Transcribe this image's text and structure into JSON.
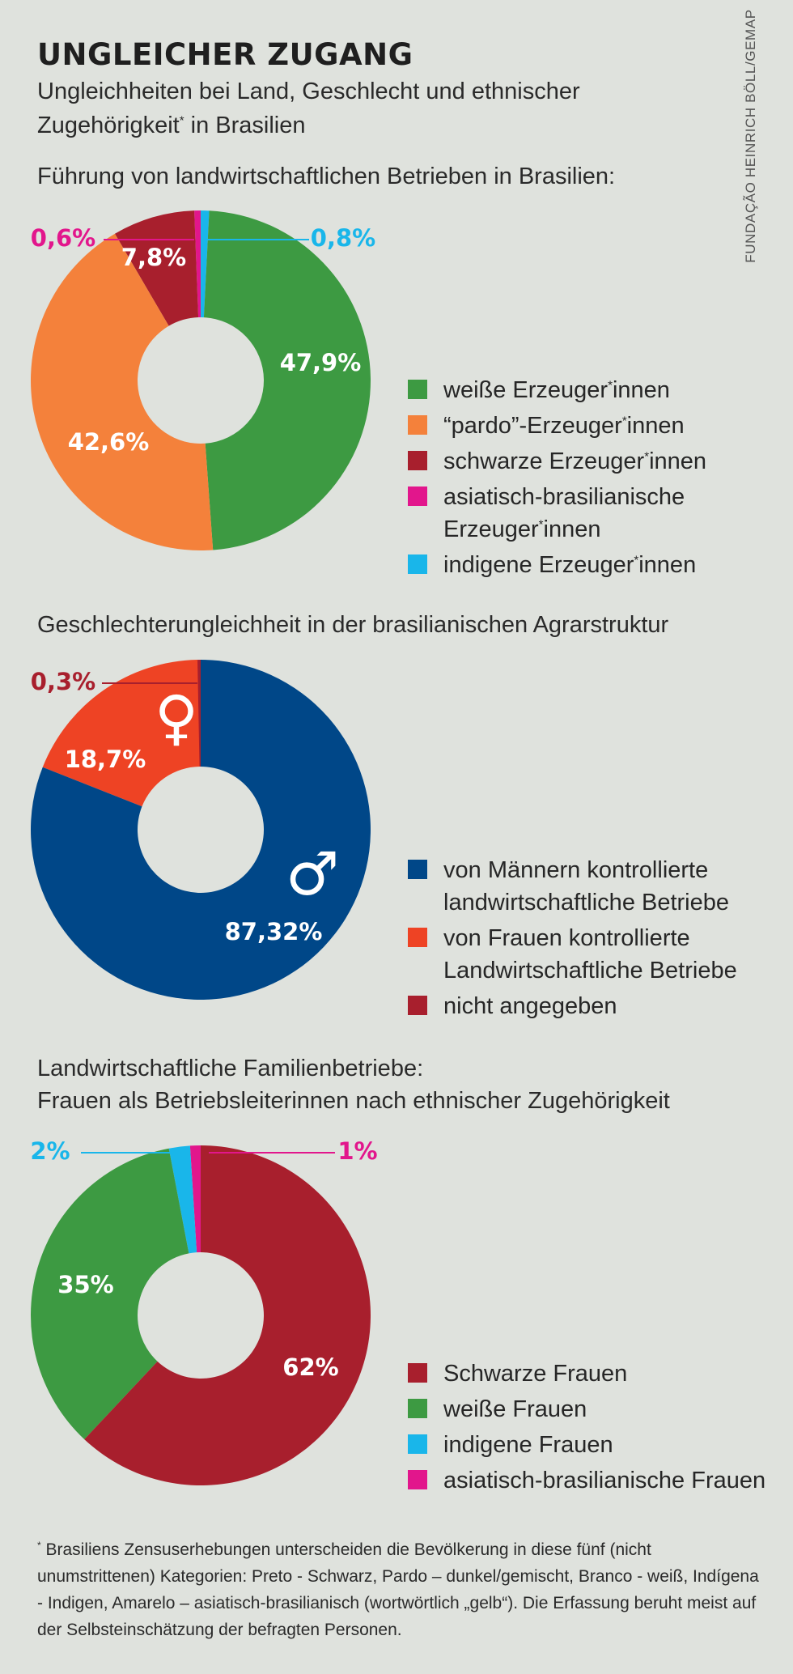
{
  "header": {
    "title": "UNGLEICHER ZUGANG",
    "subtitle_line1": "Ungleichheiten bei Land, Geschlecht und ethnischer",
    "subtitle_line2a": "Zugehörigkeit",
    "subtitle_star": "*",
    "subtitle_line2b": " in Brasilien",
    "source": "FUNDAÇÃO HEINRICH BÖLL/GEMAP"
  },
  "chart_data": [
    {
      "type": "pie",
      "title": "Führung von landwirtschaftlichen Betrieben in Brasilien:",
      "slices": [
        {
          "label": "weiße Erzeuger*innen",
          "value": 47.9,
          "display": "47,9%",
          "color": "#3d9a42"
        },
        {
          "label": "“pardo”-Erzeuger*innen",
          "value": 42.6,
          "display": "42,6%",
          "color": "#f4813b"
        },
        {
          "label": "schwarze Erzeuger*innen",
          "value": 7.8,
          "display": "7,8%",
          "color": "#a81f2d"
        },
        {
          "label": "asiatisch-brasilianische Erzeuger*innen",
          "value": 0.6,
          "display": "0,6%",
          "color": "#e2168c"
        },
        {
          "label": "indigene Erzeuger*innen",
          "value": 0.8,
          "display": "0,8%",
          "color": "#19b6ea"
        }
      ],
      "legend": [
        {
          "text": "weiße Erzeuger",
          "star": "*",
          "after": "innen",
          "color": "#3d9a42"
        },
        {
          "text": "“pardo”-Erzeuger",
          "star": "*",
          "after": "innen",
          "color": "#f4813b"
        },
        {
          "text": "schwarze Erzeuger",
          "star": "*",
          "after": "innen",
          "color": "#a81f2d"
        },
        {
          "text": "asiatisch-brasilianische",
          "line2": "Erzeuger",
          "star": "*",
          "after": "innen",
          "color": "#e2168c"
        },
        {
          "text": "indigene Erzeuger",
          "star": "*",
          "after": "innen",
          "color": "#19b6ea"
        }
      ]
    },
    {
      "type": "pie",
      "title": "Geschlechterungleichheit in der brasilianischen Agrarstruktur",
      "slices": [
        {
          "label": "von Männern kontrollierte landwirtschaftliche Betriebe",
          "value": 87.32,
          "display": "87,32%",
          "color": "#004788"
        },
        {
          "label": "von Frauen kontrollierte Landwirtschaftliche Betriebe",
          "value": 18.7,
          "display": "18,7%",
          "color": "#ee4324"
        },
        {
          "label": "nicht angegeben",
          "value": 0.3,
          "display": "0,3%",
          "color": "#a81f2d"
        }
      ],
      "symbols": {
        "male": "♂",
        "female": "♀"
      },
      "legend": [
        {
          "text": "von Männern kontrollierte",
          "line2": "landwirtschaftliche Betriebe",
          "color": "#004788"
        },
        {
          "text": "von Frauen kontrollierte",
          "line2": "Landwirtschaftliche Betriebe",
          "color": "#ee4324"
        },
        {
          "text": "nicht angegeben",
          "color": "#a81f2d"
        }
      ]
    },
    {
      "type": "pie",
      "title": "Landwirtschaftliche Familienbetriebe:",
      "subtitle": "Frauen als Betriebsleiterinnen nach ethnischer Zugehörigkeit",
      "slices": [
        {
          "label": "Schwarze Frauen",
          "value": 62,
          "display": "62%",
          "color": "#a81f2d"
        },
        {
          "label": "weiße Frauen",
          "value": 35,
          "display": "35%",
          "color": "#3d9a42"
        },
        {
          "label": "indigene Frauen",
          "value": 2,
          "display": "2%",
          "color": "#19b6ea"
        },
        {
          "label": "asiatisch-brasilianische Frauen",
          "value": 1,
          "display": "1%",
          "color": "#e2168c"
        }
      ],
      "legend": [
        {
          "text": "Schwarze Frauen",
          "color": "#a81f2d"
        },
        {
          "text": "weiße Frauen",
          "color": "#3d9a42"
        },
        {
          "text": "indigene Frauen",
          "color": "#19b6ea"
        },
        {
          "text": "asiatisch-brasilianische Frauen",
          "color": "#e2168c"
        }
      ]
    }
  ],
  "footnote": {
    "star": "*",
    "text": " Brasiliens Zensuserhebungen unterscheiden die Bevölkerung in diese fünf (nicht unumstrittenen) Kategorien: Preto - Schwarz, Pardo – dunkel/gemischt, Branco - weiß, Indígena - Indigen, Amarelo – asiatisch-brasilianisch (wortwörtlich „gelb“). Die Erfassung beruht meist auf der Selbsteinschätzung der befragten Personen."
  }
}
